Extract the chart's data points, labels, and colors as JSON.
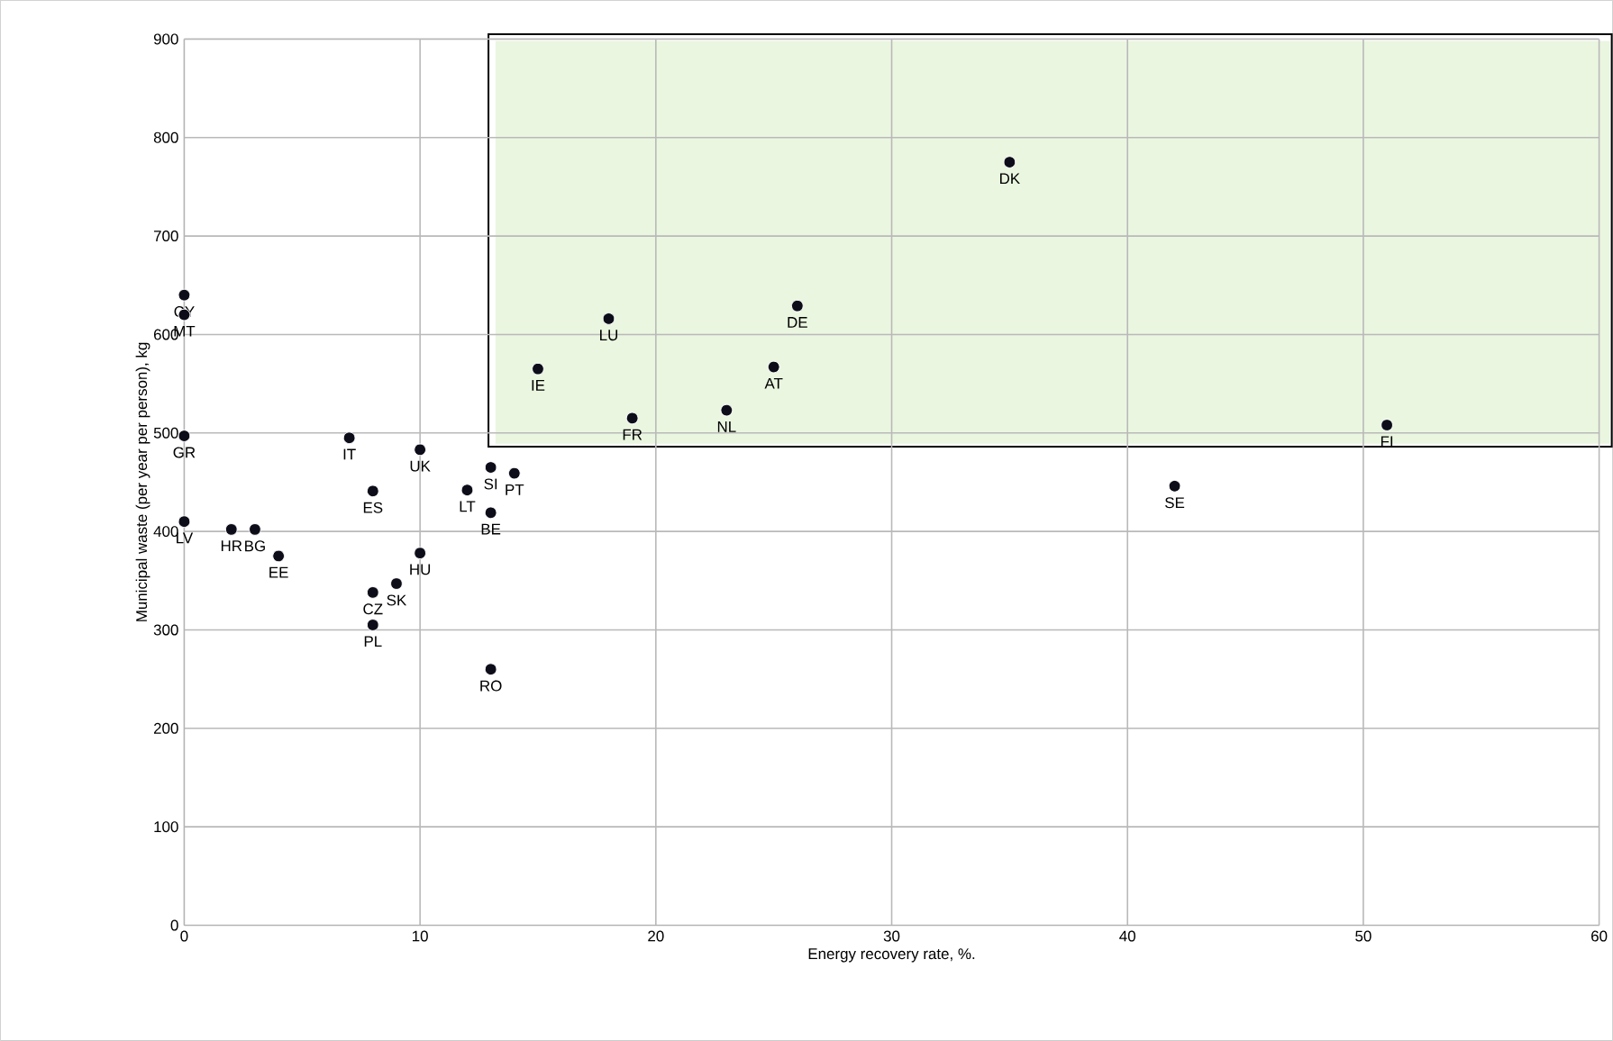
{
  "chart_data": {
    "type": "scatter",
    "xlabel": "Energy recovery rate, %.",
    "ylabel": "Municipal waste (per year per person), kg",
    "xlim": [
      0,
      60
    ],
    "ylim": [
      0,
      900
    ],
    "xticks": [
      0,
      10,
      20,
      30,
      40,
      50,
      60
    ],
    "yticks": [
      0,
      100,
      200,
      300,
      400,
      500,
      600,
      700,
      800,
      900
    ],
    "grid": true,
    "marker": "circle",
    "series": [
      {
        "color": "#0d0d1a",
        "x": [
          0,
          0,
          0,
          0,
          2,
          3,
          4,
          7,
          8,
          10,
          12,
          13,
          14,
          13,
          10,
          9,
          8,
          8,
          13,
          15,
          18,
          26,
          25,
          19,
          23,
          35,
          51,
          42
        ],
        "values": [
          640,
          620,
          497,
          410,
          402,
          402,
          375,
          495,
          441,
          483,
          442,
          465,
          459,
          419,
          378,
          347,
          338,
          305,
          260,
          565,
          616,
          629,
          567,
          515,
          523,
          775,
          508,
          446
        ]
      }
    ],
    "annotations": [
      {
        "text": "CY",
        "x": 0,
        "y": 640
      },
      {
        "text": "MT",
        "x": 0,
        "y": 620
      },
      {
        "text": "GR",
        "x": 0,
        "y": 497
      },
      {
        "text": "LV",
        "x": 0,
        "y": 410
      },
      {
        "text": "HR",
        "x": 2,
        "y": 402
      },
      {
        "text": "BG",
        "x": 3,
        "y": 402
      },
      {
        "text": "EE",
        "x": 4,
        "y": 375
      },
      {
        "text": "IT",
        "x": 7,
        "y": 495
      },
      {
        "text": "ES",
        "x": 8,
        "y": 441
      },
      {
        "text": "UK",
        "x": 10,
        "y": 483
      },
      {
        "text": "LT",
        "x": 12,
        "y": 442
      },
      {
        "text": "SI",
        "x": 13,
        "y": 465
      },
      {
        "text": "PT",
        "x": 14,
        "y": 459
      },
      {
        "text": "BE",
        "x": 13,
        "y": 419
      },
      {
        "text": "HU",
        "x": 10,
        "y": 378
      },
      {
        "text": "SK",
        "x": 9,
        "y": 347
      },
      {
        "text": "CZ",
        "x": 8,
        "y": 338
      },
      {
        "text": "PL",
        "x": 8,
        "y": 305
      },
      {
        "text": "RO",
        "x": 13,
        "y": 260
      },
      {
        "text": "IE",
        "x": 15,
        "y": 565
      },
      {
        "text": "LU",
        "x": 18,
        "y": 616
      },
      {
        "text": "DE",
        "x": 26,
        "y": 629
      },
      {
        "text": "AT",
        "x": 25,
        "y": 567
      },
      {
        "text": "FR",
        "x": 19,
        "y": 515
      },
      {
        "text": "NL",
        "x": 23,
        "y": 523
      },
      {
        "text": "DK",
        "x": 35,
        "y": 775
      },
      {
        "text": "FI",
        "x": 51,
        "y": 508
      },
      {
        "text": "SE",
        "x": 42,
        "y": 446
      }
    ]
  }
}
